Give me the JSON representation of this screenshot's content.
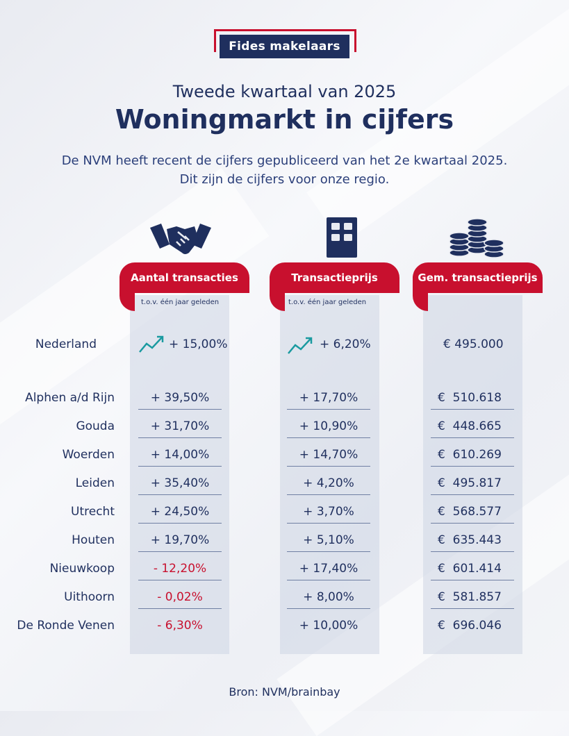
{
  "brand": {
    "name": "Fides makelaars"
  },
  "header": {
    "subtitle": "Tweede kwartaal van 2025",
    "title": "Woningmarkt in cijfers",
    "intro_line1": "De NVM heeft recent de cijfers gepubliceerd van het 2e kwartaal 2025.",
    "intro_line2": "Dit zijn de cijfers voor onze regio."
  },
  "columns": [
    {
      "label": "Aantal transacties",
      "sub": "t.o.v. één jaar geleden",
      "icon": "handshake-icon"
    },
    {
      "label": "Transactieprijs",
      "sub": "t.o.v. één jaar geleden",
      "icon": "building-icon"
    },
    {
      "label": "Gem. transactieprijs",
      "sub": "",
      "icon": "coins-icon"
    }
  ],
  "national": {
    "name": "Nederland",
    "transactions": "+ 15,00%",
    "price": "+ 6,20%",
    "avg_price": "€ 495.000",
    "trend_icon": "trend-up-icon"
  },
  "rows": [
    {
      "name": "Alphen a/d Rijn",
      "transactions": "+ 39,50%",
      "price": "+ 17,70%",
      "avg_price": "€  510.618",
      "neg": false
    },
    {
      "name": "Gouda",
      "transactions": "+ 31,70%",
      "price": "+ 10,90%",
      "avg_price": "€  448.665",
      "neg": false
    },
    {
      "name": "Woerden",
      "transactions": "+ 14,00%",
      "price": "+ 14,70%",
      "avg_price": "€  610.269",
      "neg": false
    },
    {
      "name": "Leiden",
      "transactions": "+ 35,40%",
      "price": "+ 4,20%",
      "avg_price": "€  495.817",
      "neg": false
    },
    {
      "name": "Utrecht",
      "transactions": "+ 24,50%",
      "price": "+ 3,70%",
      "avg_price": "€  568.577",
      "neg": false
    },
    {
      "name": "Houten",
      "transactions": "+ 19,70%",
      "price": "+ 5,10%",
      "avg_price": "€  635.443",
      "neg": false
    },
    {
      "name": "Nieuwkoop",
      "transactions": "- 12,20%",
      "price": "+ 17,40%",
      "avg_price": "€  601.414",
      "neg": true
    },
    {
      "name": "Uithoorn",
      "transactions": "- 0,02%",
      "price": "+ 8,00%",
      "avg_price": "€  581.857",
      "neg": true
    },
    {
      "name": "De Ronde Venen",
      "transactions": "- 6,30%",
      "price": "+ 10,00%",
      "avg_price": "€  696.046",
      "neg": true
    }
  ],
  "footer": {
    "source": "Bron: NVM/brainbay"
  },
  "colors": {
    "navy": "#1f2f5e",
    "red": "#c8102e",
    "teal": "#1a9aa0"
  }
}
